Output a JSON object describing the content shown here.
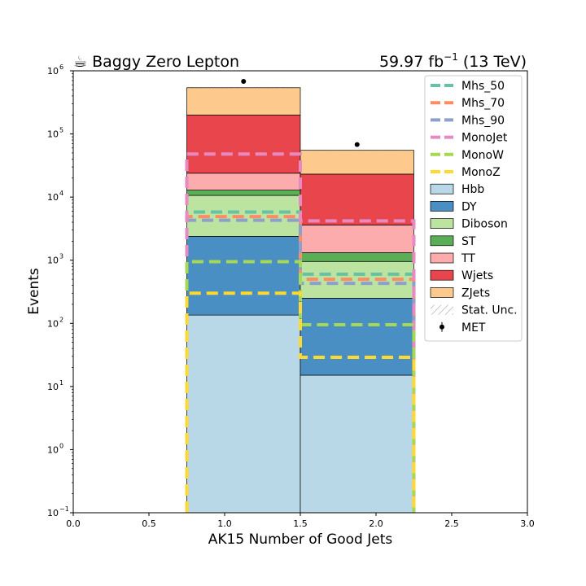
{
  "chart_data": {
    "type": "bar",
    "subtype": "stacked-histogram-log",
    "title_left": "☕ Baggy Zero Lepton",
    "title_right_main": "59.97 fb",
    "title_right_sup": "−1",
    "title_right_tail": " (13 TeV)",
    "xlabel": "AK15 Number of Good Jets",
    "ylabel": "Events",
    "xlim": [
      0.0,
      3.0
    ],
    "ylim": [
      0.1,
      1000000
    ],
    "yscale": "log",
    "x_ticks": [
      "0.0",
      "0.5",
      "1.0",
      "1.5",
      "2.0",
      "2.5",
      "3.0"
    ],
    "y_ticks": [
      {
        "base": "10",
        "exp": "−1",
        "value": 0.1
      },
      {
        "base": "10",
        "exp": "0",
        "value": 1
      },
      {
        "base": "10",
        "exp": "1",
        "value": 10
      },
      {
        "base": "10",
        "exp": "2",
        "value": 100
      },
      {
        "base": "10",
        "exp": "3",
        "value": 1000
      },
      {
        "base": "10",
        "exp": "4",
        "value": 10000
      },
      {
        "base": "10",
        "exp": "5",
        "value": 100000
      },
      {
        "base": "10",
        "exp": "6",
        "value": 1000000
      }
    ],
    "bins": [
      [
        0.75,
        1.5
      ],
      [
        1.5,
        2.25
      ]
    ],
    "stack": [
      {
        "name": "Hbb",
        "color": "#b8d8e8",
        "values": [
          135,
          15
        ]
      },
      {
        "name": "DY",
        "color": "#4a8fc4",
        "values": [
          2250,
          235
        ]
      },
      {
        "name": "Diboson",
        "color": "#bde3a0",
        "values": [
          8250,
          705
        ]
      },
      {
        "name": "ST",
        "color": "#5aae55",
        "values": [
          2250,
          360
        ]
      },
      {
        "name": "TT",
        "color": "#fcacac",
        "values": [
          11000,
          2300
        ]
      },
      {
        "name": "Wjets",
        "color": "#e8464c",
        "values": [
          176000,
          19500
        ]
      },
      {
        "name": "ZJets",
        "color": "#fdc98c",
        "values": [
          340000,
          32000
        ]
      }
    ],
    "signals": [
      {
        "name": "Mhs_50",
        "color": "#66c2a5",
        "values": [
          5800,
          600
        ]
      },
      {
        "name": "Mhs_70",
        "color": "#fc8d62",
        "values": [
          4900,
          500
        ]
      },
      {
        "name": "Mhs_90",
        "color": "#8da0cb",
        "values": [
          4300,
          430
        ]
      },
      {
        "name": "MonoJet",
        "color": "#e78ac3",
        "values": [
          48000,
          4200
        ]
      },
      {
        "name": "MonoW",
        "color": "#a6d854",
        "values": [
          950,
          95
        ]
      },
      {
        "name": "MonoZ",
        "color": "#ffd92f",
        "values": [
          300,
          29
        ]
      }
    ],
    "data": {
      "name": "MET",
      "x": [
        1.125,
        1.875
      ],
      "values": [
        680000,
        68000
      ]
    },
    "uncertainty_label": "Stat. Unc.",
    "legend_position": "top-right",
    "legend_order": [
      "Mhs_50",
      "Mhs_70",
      "Mhs_90",
      "MonoJet",
      "MonoW",
      "MonoZ",
      "Hbb",
      "DY",
      "Diboson",
      "ST",
      "TT",
      "Wjets",
      "ZJets",
      "Stat. Unc.",
      "MET"
    ]
  }
}
